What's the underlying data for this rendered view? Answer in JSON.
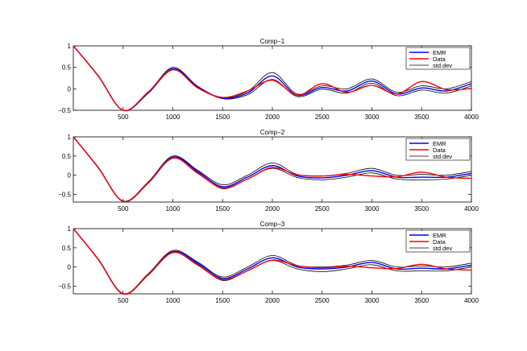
{
  "chart_data": [
    {
      "type": "line",
      "title": "Comp−1",
      "xlim": [
        0,
        4000
      ],
      "ylim": [
        -0.5,
        1
      ],
      "xticks": [
        "500",
        "1000",
        "1500",
        "2000",
        "2500",
        "3000",
        "3500",
        "4000"
      ],
      "yticks": [
        "−0.5",
        "0",
        "0.5",
        "1"
      ],
      "legend": [
        "EMR",
        "Data",
        "std.dev"
      ],
      "legend_position": "top-right",
      "series": [
        {
          "name": "EMR",
          "color": "#0000ff",
          "x": [
            0,
            250,
            500,
            750,
            1000,
            1250,
            1500,
            1750,
            2000,
            2250,
            2500,
            2750,
            3000,
            3250,
            3500,
            3750,
            4000
          ],
          "values": [
            1,
            0.3,
            -0.5,
            -0.1,
            0.47,
            0.05,
            -0.22,
            -0.1,
            0.3,
            -0.15,
            0.03,
            -0.05,
            0.18,
            -0.12,
            0.02,
            -0.05,
            0.12
          ]
        },
        {
          "name": "Data",
          "color": "#ff0000",
          "x": [
            0,
            250,
            500,
            750,
            1000,
            1250,
            1500,
            1750,
            2000,
            2250,
            2500,
            2750,
            3000,
            3250,
            3500,
            3750,
            4000
          ],
          "values": [
            1,
            0.3,
            -0.5,
            -0.08,
            0.45,
            0.02,
            -0.2,
            -0.05,
            0.2,
            -0.15,
            0.12,
            -0.08,
            0.08,
            -0.12,
            0.17,
            -0.02,
            0.01
          ]
        },
        {
          "name": "std.dev",
          "color": "#000000",
          "x": [
            0,
            250,
            500,
            750,
            1000,
            1250,
            1500,
            1750,
            2000,
            2250,
            2500,
            2750,
            3000,
            3250,
            3500,
            3750,
            4000
          ],
          "values": [
            1,
            0.31,
            -0.5,
            -0.09,
            0.5,
            0.06,
            -0.21,
            -0.06,
            0.38,
            -0.12,
            0.07,
            0,
            0.23,
            -0.08,
            0.07,
            0,
            0.17
          ]
        },
        {
          "name": "",
          "color": "#000000",
          "x": [
            0,
            250,
            500,
            750,
            1000,
            1250,
            1500,
            1750,
            2000,
            2250,
            2500,
            2750,
            3000,
            3250,
            3500,
            3750,
            4000
          ],
          "values": [
            1,
            0.29,
            -0.5,
            -0.11,
            0.44,
            0.04,
            -0.23,
            -0.14,
            0.22,
            -0.18,
            -0.01,
            -0.1,
            0.13,
            -0.16,
            -0.03,
            -0.1,
            0.07
          ]
        }
      ]
    },
    {
      "type": "line",
      "title": "Comp−2",
      "xlim": [
        0,
        4000
      ],
      "ylim": [
        -0.7,
        1
      ],
      "xticks": [
        "500",
        "1000",
        "1500",
        "2000",
        "2500",
        "3000",
        "3500",
        "4000"
      ],
      "yticks": [
        "−0.5",
        "0",
        "0.5",
        "1"
      ],
      "legend": [
        "EMR",
        "Data",
        "std.dev"
      ],
      "legend_position": "top-right",
      "series": [
        {
          "name": "EMR",
          "color": "#0000ff",
          "x": [
            0,
            250,
            500,
            750,
            1000,
            1250,
            1500,
            1750,
            2000,
            2250,
            2500,
            2750,
            3000,
            3250,
            3500,
            3750,
            4000
          ],
          "values": [
            1,
            0.2,
            -0.68,
            -0.2,
            0.47,
            0.1,
            -0.3,
            -0.05,
            0.25,
            -0.02,
            -0.07,
            0,
            0.12,
            -0.05,
            -0.05,
            -0.05,
            0.05
          ]
        },
        {
          "name": "Data",
          "color": "#ff0000",
          "x": [
            0,
            250,
            500,
            750,
            1000,
            1250,
            1500,
            1750,
            2000,
            2250,
            2500,
            2750,
            3000,
            3250,
            3500,
            3750,
            4000
          ],
          "values": [
            1,
            0.2,
            -0.68,
            -0.2,
            0.45,
            0.05,
            -0.33,
            -0.1,
            0.2,
            0.01,
            -0.02,
            0.02,
            -0.02,
            -0.04,
            0.08,
            -0.05,
            -0.08
          ]
        },
        {
          "name": "std.dev",
          "color": "#000000",
          "x": [
            0,
            250,
            500,
            750,
            1000,
            1250,
            1500,
            1750,
            2000,
            2250,
            2500,
            2750,
            3000,
            3250,
            3500,
            3750,
            4000
          ],
          "values": [
            1,
            0.21,
            -0.67,
            -0.18,
            0.5,
            0.13,
            -0.25,
            0,
            0.32,
            0.02,
            -0.02,
            0.05,
            0.18,
            0,
            0.02,
            0,
            0.1
          ]
        },
        {
          "name": "",
          "color": "#000000",
          "x": [
            0,
            250,
            500,
            750,
            1000,
            1250,
            1500,
            1750,
            2000,
            2250,
            2500,
            2750,
            3000,
            3250,
            3500,
            3750,
            4000
          ],
          "values": [
            1,
            0.19,
            -0.69,
            -0.22,
            0.44,
            0.07,
            -0.35,
            -0.1,
            0.18,
            -0.06,
            -0.12,
            -0.05,
            0.06,
            -0.1,
            -0.12,
            -0.1,
            0
          ]
        }
      ]
    },
    {
      "type": "line",
      "title": "Comp−3",
      "xlim": [
        0,
        4000
      ],
      "ylim": [
        -0.7,
        1
      ],
      "xticks": [
        "500",
        "1000",
        "1500",
        "2000",
        "2500",
        "3000",
        "3500",
        "4000"
      ],
      "yticks": [
        "−0.5",
        "0",
        "0.5",
        "1"
      ],
      "legend": [
        "EMR",
        "Data",
        "std.dev"
      ],
      "legend_position": "top-right",
      "series": [
        {
          "name": "EMR",
          "color": "#0000ff",
          "x": [
            0,
            250,
            500,
            750,
            1000,
            1250,
            1500,
            1750,
            2000,
            2250,
            2500,
            2750,
            3000,
            3250,
            3500,
            3750,
            4000
          ],
          "values": [
            1,
            0.2,
            -0.7,
            -0.2,
            0.4,
            0.1,
            -0.3,
            -0.05,
            0.24,
            0,
            -0.05,
            0,
            0.12,
            -0.05,
            -0.03,
            -0.05,
            0.05
          ]
        },
        {
          "name": "Data",
          "color": "#ff0000",
          "x": [
            0,
            250,
            500,
            750,
            1000,
            1250,
            1500,
            1750,
            2000,
            2250,
            2500,
            2750,
            3000,
            3250,
            3500,
            3750,
            4000
          ],
          "values": [
            1,
            0.2,
            -0.7,
            -0.2,
            0.38,
            0.05,
            -0.33,
            -0.1,
            0.18,
            0.03,
            -0.02,
            0.02,
            -0.02,
            -0.04,
            0.07,
            -0.05,
            -0.08
          ]
        },
        {
          "name": "std.dev",
          "color": "#000000",
          "x": [
            0,
            250,
            500,
            750,
            1000,
            1250,
            1500,
            1750,
            2000,
            2250,
            2500,
            2750,
            3000,
            3250,
            3500,
            3750,
            4000
          ],
          "values": [
            1,
            0.21,
            -0.69,
            -0.18,
            0.43,
            0.13,
            -0.26,
            0,
            0.3,
            0.04,
            0,
            0.05,
            0.17,
            0,
            0.03,
            0,
            0.1
          ]
        },
        {
          "name": "",
          "color": "#000000",
          "x": [
            0,
            250,
            500,
            750,
            1000,
            1250,
            1500,
            1750,
            2000,
            2250,
            2500,
            2750,
            3000,
            3250,
            3500,
            3750,
            4000
          ],
          "values": [
            1,
            0.19,
            -0.71,
            -0.22,
            0.37,
            0.07,
            -0.35,
            -0.1,
            0.17,
            -0.05,
            -0.12,
            -0.05,
            0.06,
            -0.1,
            -0.1,
            -0.1,
            0
          ]
        }
      ]
    }
  ]
}
